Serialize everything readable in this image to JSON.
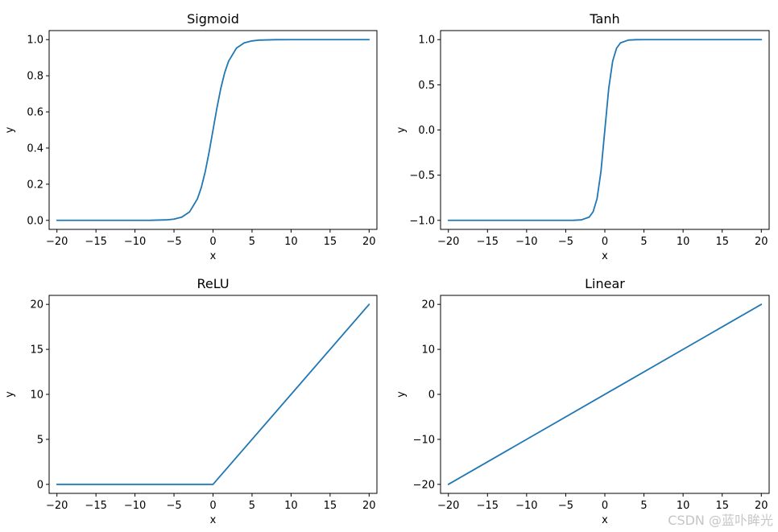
{
  "watermark": "CSDN @蓝卟眸光",
  "chart_data": [
    {
      "type": "line",
      "title": "Sigmoid",
      "xlabel": "x",
      "ylabel": "y",
      "xlim": [
        -21,
        21
      ],
      "ylim": [
        -0.05,
        1.05
      ],
      "xticks": [
        -20,
        -15,
        -10,
        -5,
        0,
        5,
        10,
        15,
        20
      ],
      "yticks": [
        0.0,
        0.2,
        0.4,
        0.6,
        0.8,
        1.0
      ],
      "ytick_labels": [
        "0.0",
        "0.2",
        "0.4",
        "0.6",
        "0.8",
        "1.0"
      ],
      "color": "#1f77b4",
      "grid": false,
      "series": [
        {
          "x": [
            -20,
            -15,
            -10,
            -8,
            -6,
            -5,
            -4,
            -3,
            -2,
            -1.5,
            -1,
            -0.5,
            0,
            0.5,
            1,
            1.5,
            2,
            3,
            4,
            5,
            6,
            8,
            10,
            15,
            20
          ],
          "values": [
            0.0,
            0.0,
            0.0,
            0.0003,
            0.0025,
            0.0067,
            0.018,
            0.047,
            0.119,
            0.182,
            0.269,
            0.378,
            0.5,
            0.622,
            0.731,
            0.818,
            0.881,
            0.953,
            0.982,
            0.993,
            0.9975,
            0.9997,
            1.0,
            1.0,
            1.0
          ]
        }
      ]
    },
    {
      "type": "line",
      "title": "Tanh",
      "xlabel": "x",
      "ylabel": "y",
      "xlim": [
        -21,
        21
      ],
      "ylim": [
        -1.1,
        1.1
      ],
      "xticks": [
        -20,
        -15,
        -10,
        -5,
        0,
        5,
        10,
        15,
        20
      ],
      "yticks": [
        -1.0,
        -0.5,
        0.0,
        0.5,
        1.0
      ],
      "ytick_labels": [
        "−1.0",
        "−0.5",
        "0.0",
        "0.5",
        "1.0"
      ],
      "color": "#1f77b4",
      "grid": false,
      "series": [
        {
          "x": [
            -20,
            -10,
            -5,
            -4,
            -3,
            -2,
            -1.5,
            -1,
            -0.5,
            0,
            0.5,
            1,
            1.5,
            2,
            3,
            4,
            5,
            10,
            20
          ],
          "values": [
            -1.0,
            -1.0,
            -0.9999,
            -0.9993,
            -0.995,
            -0.964,
            -0.905,
            -0.762,
            -0.462,
            0.0,
            0.462,
            0.762,
            0.905,
            0.964,
            0.995,
            0.9993,
            0.9999,
            1.0,
            1.0
          ]
        }
      ]
    },
    {
      "type": "line",
      "title": "ReLU",
      "xlabel": "x",
      "ylabel": "y",
      "xlim": [
        -21,
        21
      ],
      "ylim": [
        -1,
        21
      ],
      "xticks": [
        -20,
        -15,
        -10,
        -5,
        0,
        5,
        10,
        15,
        20
      ],
      "yticks": [
        0,
        5,
        10,
        15,
        20
      ],
      "ytick_labels": [
        "0",
        "5",
        "10",
        "15",
        "20"
      ],
      "color": "#1f77b4",
      "grid": false,
      "series": [
        {
          "x": [
            -20,
            0,
            20
          ],
          "values": [
            0,
            0,
            20
          ]
        }
      ]
    },
    {
      "type": "line",
      "title": "Linear",
      "xlabel": "x",
      "ylabel": "y",
      "xlim": [
        -21,
        21
      ],
      "ylim": [
        -22,
        22
      ],
      "xticks": [
        -20,
        -15,
        -10,
        -5,
        0,
        5,
        10,
        15,
        20
      ],
      "yticks": [
        -20,
        -10,
        0,
        10,
        20
      ],
      "ytick_labels": [
        "−20",
        "−10",
        "0",
        "10",
        "20"
      ],
      "color": "#1f77b4",
      "grid": false,
      "series": [
        {
          "x": [
            -20,
            20
          ],
          "values": [
            -20,
            20
          ]
        }
      ]
    }
  ]
}
